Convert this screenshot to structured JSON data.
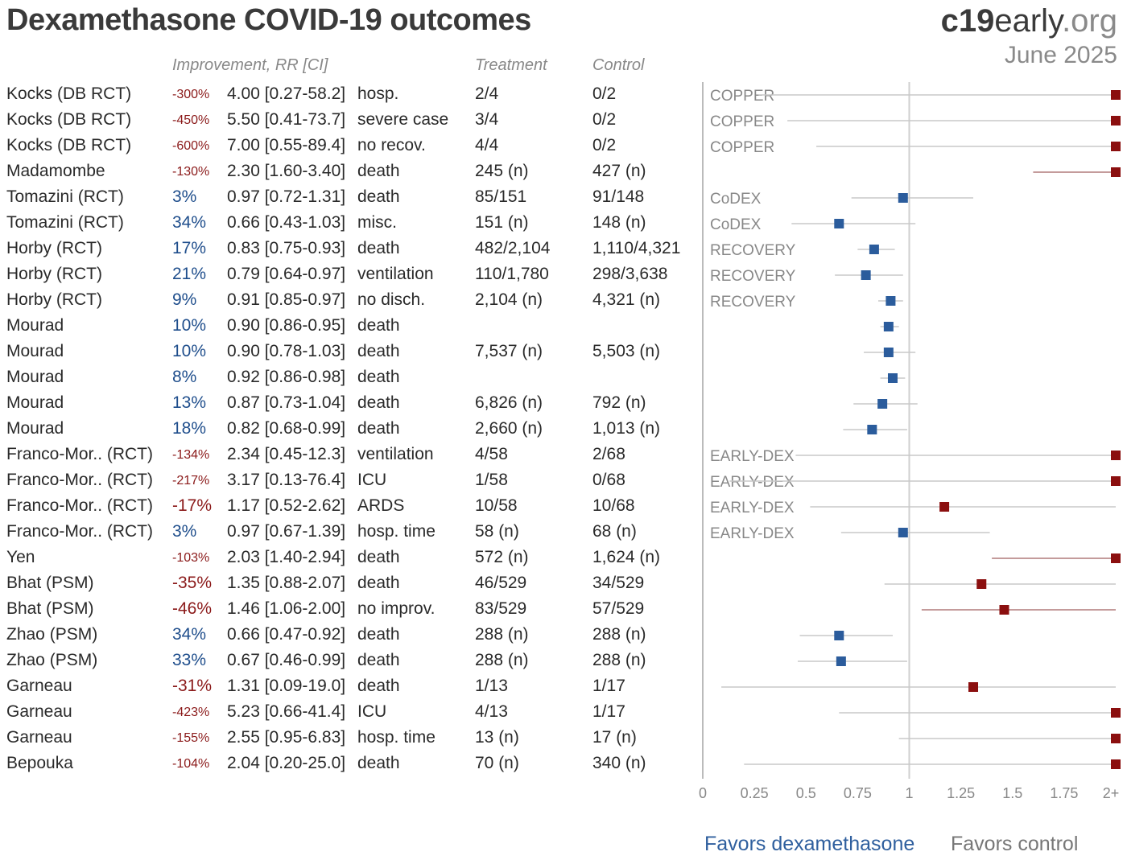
{
  "title": "Dexamethasone COVID-19 outcomes",
  "brand": {
    "bold": "c19",
    "mid": "early",
    "end": ".org"
  },
  "date": "June 2025",
  "headers": {
    "improvement": "Improvement, RR [CI]",
    "treatment": "Treatment",
    "control": "Control"
  },
  "favors": {
    "left": "Favors dexamethasone",
    "right": "Favors control"
  },
  "colors": {
    "favor": "#2b5c9c",
    "against": "#8b0f0f",
    "ci_line": "#c8c8c8",
    "ci_line_red": "#b07a7a"
  },
  "chart_data": {
    "type": "forest",
    "xlim": [
      0,
      2
    ],
    "x_ticks": [
      "0",
      "0.25",
      "0.5",
      "0.75",
      "1",
      "1.25",
      "1.5",
      "1.75",
      "2+"
    ],
    "reference_line": 1,
    "rows": [
      {
        "study": "Kocks (DB RCT)",
        "improvement": "-300%",
        "rr_text": "4.00 [0.27-58.2]",
        "outcome": "hosp.",
        "treatment": "2/4",
        "control": "0/2",
        "trial": "COPPER",
        "rr": 4.0,
        "lo": 0.27,
        "hi": 58.2
      },
      {
        "study": "Kocks (DB RCT)",
        "improvement": "-450%",
        "rr_text": "5.50 [0.41-73.7]",
        "outcome": "severe case",
        "treatment": "3/4",
        "control": "0/2",
        "trial": "COPPER",
        "rr": 5.5,
        "lo": 0.41,
        "hi": 73.7
      },
      {
        "study": "Kocks (DB RCT)",
        "improvement": "-600%",
        "rr_text": "7.00 [0.55-89.4]",
        "outcome": "no recov.",
        "treatment": "4/4",
        "control": "0/2",
        "trial": "COPPER",
        "rr": 7.0,
        "lo": 0.55,
        "hi": 89.4
      },
      {
        "study": "Madamombe",
        "improvement": "-130%",
        "rr_text": "2.30 [1.60-3.40]",
        "outcome": "death",
        "treatment": "245 (n)",
        "control": "427 (n)",
        "trial": "",
        "rr": 2.3,
        "lo": 1.6,
        "hi": 3.4
      },
      {
        "study": "Tomazini (RCT)",
        "improvement": "3%",
        "rr_text": "0.97 [0.72-1.31]",
        "outcome": "death",
        "treatment": "85/151",
        "control": "91/148",
        "trial": "CoDEX",
        "rr": 0.97,
        "lo": 0.72,
        "hi": 1.31
      },
      {
        "study": "Tomazini (RCT)",
        "improvement": "34%",
        "rr_text": "0.66 [0.43-1.03]",
        "outcome": "misc.",
        "treatment": "151 (n)",
        "control": "148 (n)",
        "trial": "CoDEX",
        "rr": 0.66,
        "lo": 0.43,
        "hi": 1.03
      },
      {
        "study": "Horby (RCT)",
        "improvement": "17%",
        "rr_text": "0.83 [0.75-0.93]",
        "outcome": "death",
        "treatment": "482/2,104",
        "control": "1,110/4,321",
        "trial": "RECOVERY",
        "rr": 0.83,
        "lo": 0.75,
        "hi": 0.93
      },
      {
        "study": "Horby (RCT)",
        "improvement": "21%",
        "rr_text": "0.79 [0.64-0.97]",
        "outcome": "ventilation",
        "treatment": "110/1,780",
        "control": "298/3,638",
        "trial": "RECOVERY",
        "rr": 0.79,
        "lo": 0.64,
        "hi": 0.97
      },
      {
        "study": "Horby (RCT)",
        "improvement": "9%",
        "rr_text": "0.91 [0.85-0.97]",
        "outcome": "no disch.",
        "treatment": "2,104 (n)",
        "control": "4,321 (n)",
        "trial": "RECOVERY",
        "rr": 0.91,
        "lo": 0.85,
        "hi": 0.97
      },
      {
        "study": "Mourad",
        "improvement": "10%",
        "rr_text": "0.90 [0.86-0.95]",
        "outcome": "death",
        "treatment": "",
        "control": "",
        "trial": "",
        "rr": 0.9,
        "lo": 0.86,
        "hi": 0.95
      },
      {
        "study": "Mourad",
        "improvement": "10%",
        "rr_text": "0.90 [0.78-1.03]",
        "outcome": "death",
        "treatment": "7,537 (n)",
        "control": "5,503 (n)",
        "trial": "",
        "rr": 0.9,
        "lo": 0.78,
        "hi": 1.03
      },
      {
        "study": "Mourad",
        "improvement": "8%",
        "rr_text": "0.92 [0.86-0.98]",
        "outcome": "death",
        "treatment": "",
        "control": "",
        "trial": "",
        "rr": 0.92,
        "lo": 0.86,
        "hi": 0.98
      },
      {
        "study": "Mourad",
        "improvement": "13%",
        "rr_text": "0.87 [0.73-1.04]",
        "outcome": "death",
        "treatment": "6,826 (n)",
        "control": "792 (n)",
        "trial": "",
        "rr": 0.87,
        "lo": 0.73,
        "hi": 1.04
      },
      {
        "study": "Mourad",
        "improvement": "18%",
        "rr_text": "0.82 [0.68-0.99]",
        "outcome": "death",
        "treatment": "2,660 (n)",
        "control": "1,013 (n)",
        "trial": "",
        "rr": 0.82,
        "lo": 0.68,
        "hi": 0.99
      },
      {
        "study": "Franco-Mor.. (RCT)",
        "improvement": "-134%",
        "rr_text": "2.34 [0.45-12.3]",
        "outcome": "ventilation",
        "treatment": "4/58",
        "control": "2/68",
        "trial": "EARLY-DEX",
        "rr": 2.34,
        "lo": 0.45,
        "hi": 12.3
      },
      {
        "study": "Franco-Mor.. (RCT)",
        "improvement": "-217%",
        "rr_text": "3.17 [0.13-76.4]",
        "outcome": "ICU",
        "treatment": "1/58",
        "control": "0/68",
        "trial": "EARLY-DEX",
        "rr": 3.17,
        "lo": 0.13,
        "hi": 76.4
      },
      {
        "study": "Franco-Mor.. (RCT)",
        "improvement": "-17%",
        "rr_text": "1.17 [0.52-2.62]",
        "outcome": "ARDS",
        "treatment": "10/58",
        "control": "10/68",
        "trial": "EARLY-DEX",
        "rr": 1.17,
        "lo": 0.52,
        "hi": 2.62
      },
      {
        "study": "Franco-Mor.. (RCT)",
        "improvement": "3%",
        "rr_text": "0.97 [0.67-1.39]",
        "outcome": "hosp. time",
        "treatment": "58 (n)",
        "control": "68 (n)",
        "trial": "EARLY-DEX",
        "rr": 0.97,
        "lo": 0.67,
        "hi": 1.39
      },
      {
        "study": "Yen",
        "improvement": "-103%",
        "rr_text": "2.03 [1.40-2.94]",
        "outcome": "death",
        "treatment": "572 (n)",
        "control": "1,624 (n)",
        "trial": "",
        "rr": 2.03,
        "lo": 1.4,
        "hi": 2.94
      },
      {
        "study": "Bhat (PSM)",
        "improvement": "-35%",
        "rr_text": "1.35 [0.88-2.07]",
        "outcome": "death",
        "treatment": "46/529",
        "control": "34/529",
        "trial": "",
        "rr": 1.35,
        "lo": 0.88,
        "hi": 2.07
      },
      {
        "study": "Bhat (PSM)",
        "improvement": "-46%",
        "rr_text": "1.46 [1.06-2.00]",
        "outcome": "no improv.",
        "treatment": "83/529",
        "control": "57/529",
        "trial": "",
        "rr": 1.46,
        "lo": 1.06,
        "hi": 2.0
      },
      {
        "study": "Zhao (PSM)",
        "improvement": "34%",
        "rr_text": "0.66 [0.47-0.92]",
        "outcome": "death",
        "treatment": "288 (n)",
        "control": "288 (n)",
        "trial": "",
        "rr": 0.66,
        "lo": 0.47,
        "hi": 0.92
      },
      {
        "study": "Zhao (PSM)",
        "improvement": "33%",
        "rr_text": "0.67 [0.46-0.99]",
        "outcome": "death",
        "treatment": "288 (n)",
        "control": "288 (n)",
        "trial": "",
        "rr": 0.67,
        "lo": 0.46,
        "hi": 0.99
      },
      {
        "study": "Garneau",
        "improvement": "-31%",
        "rr_text": "1.31 [0.09-19.0]",
        "outcome": "death",
        "treatment": "1/13",
        "control": "1/17",
        "trial": "",
        "rr": 1.31,
        "lo": 0.09,
        "hi": 19.0
      },
      {
        "study": "Garneau",
        "improvement": "-423%",
        "rr_text": "5.23 [0.66-41.4]",
        "outcome": "ICU",
        "treatment": "4/13",
        "control": "1/17",
        "trial": "",
        "rr": 5.23,
        "lo": 0.66,
        "hi": 41.4
      },
      {
        "study": "Garneau",
        "improvement": "-155%",
        "rr_text": "2.55 [0.95-6.83]",
        "outcome": "hosp. time",
        "treatment": "13 (n)",
        "control": "17 (n)",
        "trial": "",
        "rr": 2.55,
        "lo": 0.95,
        "hi": 6.83
      },
      {
        "study": "Bepouka",
        "improvement": "-104%",
        "rr_text": "2.04 [0.20-25.0]",
        "outcome": "death",
        "treatment": "70 (n)",
        "control": "340 (n)",
        "trial": "",
        "rr": 2.04,
        "lo": 0.2,
        "hi": 25.0
      }
    ]
  }
}
